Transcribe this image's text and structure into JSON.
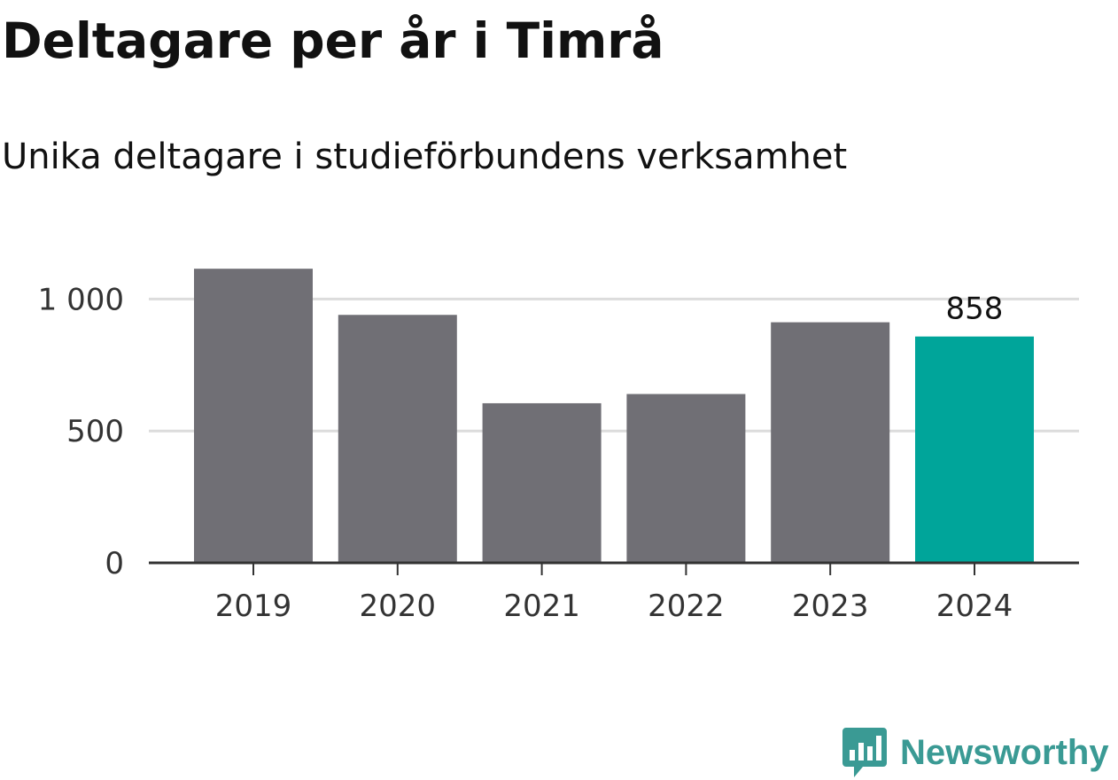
{
  "title": "Deltagare per år i Timrå",
  "subtitle": "Unika deltagare i studieförbundens verksamhet",
  "colors": {
    "bar": "#706f75",
    "highlight": "#00a59a",
    "grid": "#dcdcdc",
    "axis": "#333333",
    "brand": "#3a9a94"
  },
  "chart_data": {
    "type": "bar",
    "title": "Deltagare per år i Timrå",
    "subtitle": "Unika deltagare i studieförbundens verksamhet",
    "categories": [
      "2019",
      "2020",
      "2021",
      "2022",
      "2023",
      "2024"
    ],
    "values": [
      1115,
      940,
      605,
      640,
      912,
      858
    ],
    "highlight_index": 5,
    "data_labels": {
      "5": "858"
    },
    "xlabel": "",
    "ylabel": "",
    "ylim": [
      0,
      1120
    ],
    "yticks": [
      0,
      500,
      1000
    ],
    "ytick_labels": [
      "0",
      "500",
      "1 000"
    ],
    "grid": true
  },
  "logo": {
    "icon": "newsworthy-chart-bubble-icon",
    "text": "Newsworthy"
  }
}
